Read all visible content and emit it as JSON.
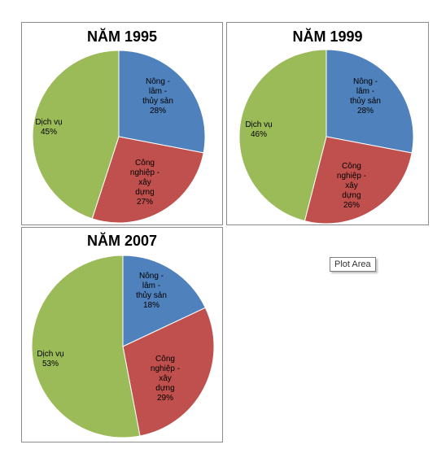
{
  "colors": {
    "nong_lam_thuy_san": "#4f81bd",
    "cong_nghiep_xay_dung": "#c0504d",
    "dich_vu": "#9bbb59"
  },
  "tooltip": "Plot Area",
  "chart_data": [
    {
      "type": "pie",
      "title": "NĂM 1995",
      "slices": [
        {
          "label": [
            "Nông -",
            "lâm -",
            "thủy sản"
          ],
          "value": 28,
          "text": "28%",
          "color": "#4f81bd"
        },
        {
          "label": [
            "Công",
            "nghiệp -",
            "xây",
            "dựng"
          ],
          "value": 27,
          "text": "27%",
          "color": "#c0504d"
        },
        {
          "label": [
            "Dịch vụ"
          ],
          "value": 45,
          "text": "45%",
          "color": "#9bbb59"
        }
      ]
    },
    {
      "type": "pie",
      "title": "NĂM 1999",
      "slices": [
        {
          "label": [
            "Nông -",
            "lâm -",
            "thủy sản"
          ],
          "value": 28,
          "text": "28%",
          "color": "#4f81bd"
        },
        {
          "label": [
            "Công",
            "nghiệp -",
            "xây",
            "dựng"
          ],
          "value": 26,
          "text": "26%",
          "color": "#c0504d"
        },
        {
          "label": [
            "Dịch vụ"
          ],
          "value": 46,
          "text": "46%",
          "color": "#9bbb59"
        }
      ]
    },
    {
      "type": "pie",
      "title": "NĂM 2007",
      "slices": [
        {
          "label": [
            "Nông -",
            "lâm -",
            "thủy sản"
          ],
          "value": 18,
          "text": "18%",
          "color": "#4f81bd"
        },
        {
          "label": [
            "Công",
            "nghiệp -",
            "xây",
            "dựng"
          ],
          "value": 29,
          "text": "29%",
          "color": "#c0504d"
        },
        {
          "label": [
            "Dịch vụ"
          ],
          "value": 53,
          "text": "53%",
          "color": "#9bbb59"
        }
      ]
    }
  ]
}
